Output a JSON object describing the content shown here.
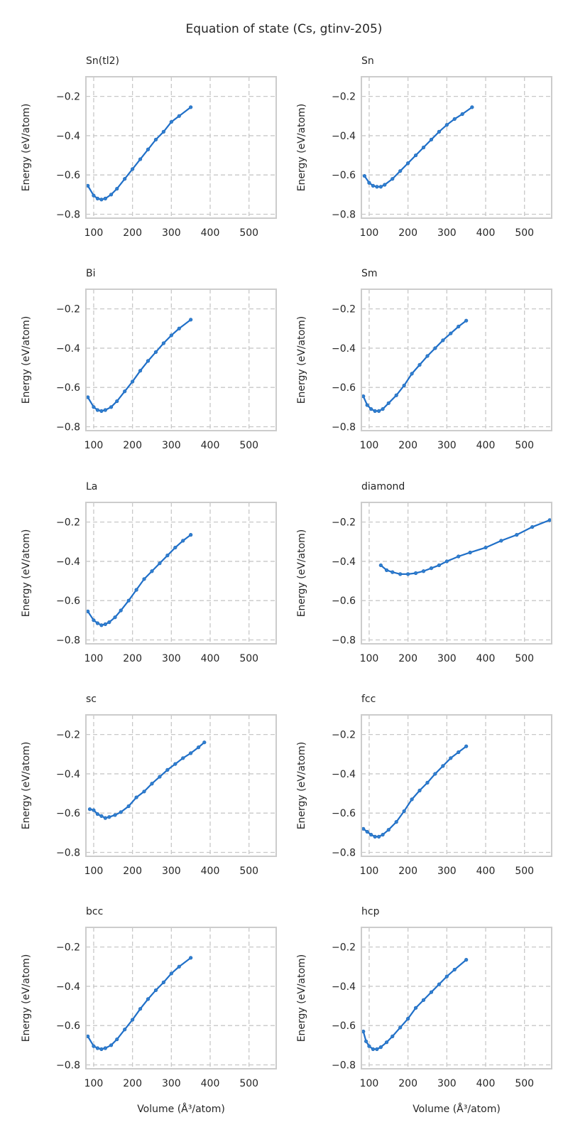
{
  "figure": {
    "title": "Equation of state (Cs, gtinv-205)"
  },
  "colors": {
    "series": "#2f7fd0",
    "grid": "#c8c8c8",
    "frame": "#cccccc",
    "text": "#262626"
  },
  "chart_data": [
    {
      "type": "scatter",
      "title": "Sn(tl2)",
      "xlabel": "",
      "ylabel": "Energy (eV/atom)",
      "xlim": [
        80,
        570
      ],
      "ylim": [
        -0.82,
        -0.1
      ],
      "xticks": [
        100,
        200,
        300,
        400,
        500
      ],
      "yticks": [
        -0.8,
        -0.6,
        -0.4,
        -0.2
      ],
      "grid": true,
      "x": [
        85,
        100,
        110,
        120,
        130,
        145,
        160,
        180,
        200,
        220,
        240,
        260,
        280,
        300,
        320,
        350
      ],
      "y": [
        -0.655,
        -0.705,
        -0.72,
        -0.725,
        -0.72,
        -0.7,
        -0.67,
        -0.62,
        -0.57,
        -0.52,
        -0.47,
        -0.42,
        -0.38,
        -0.33,
        -0.3,
        -0.255
      ]
    },
    {
      "type": "scatter",
      "title": "Sn",
      "xlabel": "",
      "ylabel": "Energy (eV/atom)",
      "xlim": [
        80,
        570
      ],
      "ylim": [
        -0.82,
        -0.1
      ],
      "xticks": [
        100,
        200,
        300,
        400,
        500
      ],
      "yticks": [
        -0.8,
        -0.6,
        -0.4,
        -0.2
      ],
      "grid": true,
      "x": [
        88,
        100,
        110,
        120,
        130,
        140,
        160,
        180,
        200,
        220,
        240,
        260,
        280,
        300,
        320,
        340,
        365
      ],
      "y": [
        -0.605,
        -0.64,
        -0.655,
        -0.66,
        -0.66,
        -0.65,
        -0.62,
        -0.58,
        -0.54,
        -0.5,
        -0.46,
        -0.42,
        -0.38,
        -0.345,
        -0.315,
        -0.29,
        -0.255
      ]
    },
    {
      "type": "scatter",
      "title": "Bi",
      "xlabel": "",
      "ylabel": "Energy (eV/atom)",
      "xlim": [
        80,
        570
      ],
      "ylim": [
        -0.82,
        -0.1
      ],
      "xticks": [
        100,
        200,
        300,
        400,
        500
      ],
      "yticks": [
        -0.8,
        -0.6,
        -0.4,
        -0.2
      ],
      "grid": true,
      "x": [
        85,
        100,
        110,
        120,
        130,
        145,
        160,
        180,
        200,
        220,
        240,
        260,
        280,
        300,
        320,
        350
      ],
      "y": [
        -0.65,
        -0.7,
        -0.715,
        -0.72,
        -0.715,
        -0.7,
        -0.67,
        -0.62,
        -0.57,
        -0.515,
        -0.465,
        -0.42,
        -0.375,
        -0.335,
        -0.3,
        -0.255
      ]
    },
    {
      "type": "scatter",
      "title": "Sm",
      "xlabel": "",
      "ylabel": "Energy (eV/atom)",
      "xlim": [
        80,
        570
      ],
      "ylim": [
        -0.82,
        -0.1
      ],
      "xticks": [
        100,
        200,
        300,
        400,
        500
      ],
      "yticks": [
        -0.8,
        -0.6,
        -0.4,
        -0.2
      ],
      "grid": true,
      "x": [
        85,
        95,
        105,
        115,
        125,
        135,
        150,
        170,
        190,
        210,
        230,
        250,
        270,
        290,
        310,
        330,
        350
      ],
      "y": [
        -0.645,
        -0.69,
        -0.71,
        -0.72,
        -0.72,
        -0.71,
        -0.68,
        -0.64,
        -0.59,
        -0.53,
        -0.485,
        -0.44,
        -0.4,
        -0.36,
        -0.325,
        -0.29,
        -0.26
      ]
    },
    {
      "type": "scatter",
      "title": "La",
      "xlabel": "",
      "ylabel": "Energy (eV/atom)",
      "xlim": [
        80,
        570
      ],
      "ylim": [
        -0.82,
        -0.1
      ],
      "xticks": [
        100,
        200,
        300,
        400,
        500
      ],
      "yticks": [
        -0.8,
        -0.6,
        -0.4,
        -0.2
      ],
      "grid": true,
      "x": [
        85,
        100,
        110,
        120,
        130,
        140,
        155,
        170,
        190,
        210,
        230,
        250,
        270,
        290,
        310,
        330,
        350
      ],
      "y": [
        -0.655,
        -0.7,
        -0.715,
        -0.725,
        -0.72,
        -0.71,
        -0.685,
        -0.65,
        -0.6,
        -0.545,
        -0.49,
        -0.45,
        -0.41,
        -0.37,
        -0.33,
        -0.295,
        -0.265
      ]
    },
    {
      "type": "scatter",
      "title": "diamond",
      "xlabel": "",
      "ylabel": "Energy (eV/atom)",
      "xlim": [
        80,
        570
      ],
      "ylim": [
        -0.82,
        -0.1
      ],
      "xticks": [
        100,
        200,
        300,
        400,
        500
      ],
      "yticks": [
        -0.8,
        -0.6,
        -0.4,
        -0.2
      ],
      "grid": true,
      "x": [
        130,
        145,
        160,
        180,
        200,
        220,
        240,
        260,
        280,
        300,
        330,
        360,
        400,
        440,
        480,
        520,
        565
      ],
      "y": [
        -0.42,
        -0.445,
        -0.455,
        -0.465,
        -0.465,
        -0.46,
        -0.45,
        -0.435,
        -0.42,
        -0.4,
        -0.375,
        -0.355,
        -0.33,
        -0.295,
        -0.265,
        -0.225,
        -0.19
      ]
    },
    {
      "type": "scatter",
      "title": "sc",
      "xlabel": "",
      "ylabel": "Energy (eV/atom)",
      "xlim": [
        80,
        570
      ],
      "ylim": [
        -0.82,
        -0.1
      ],
      "xticks": [
        100,
        200,
        300,
        400,
        500
      ],
      "yticks": [
        -0.8,
        -0.6,
        -0.4,
        -0.2
      ],
      "grid": true,
      "x": [
        90,
        100,
        110,
        120,
        130,
        140,
        155,
        170,
        190,
        210,
        230,
        250,
        270,
        290,
        310,
        330,
        350,
        370,
        385
      ],
      "y": [
        -0.58,
        -0.585,
        -0.605,
        -0.615,
        -0.625,
        -0.62,
        -0.61,
        -0.595,
        -0.565,
        -0.52,
        -0.49,
        -0.45,
        -0.415,
        -0.38,
        -0.35,
        -0.32,
        -0.295,
        -0.265,
        -0.24
      ]
    },
    {
      "type": "scatter",
      "title": "fcc",
      "xlabel": "",
      "ylabel": "Energy (eV/atom)",
      "xlim": [
        80,
        570
      ],
      "ylim": [
        -0.82,
        -0.1
      ],
      "xticks": [
        100,
        200,
        300,
        400,
        500
      ],
      "yticks": [
        -0.8,
        -0.6,
        -0.4,
        -0.2
      ],
      "grid": true,
      "x": [
        85,
        95,
        105,
        115,
        125,
        135,
        150,
        170,
        190,
        210,
        230,
        250,
        270,
        290,
        310,
        330,
        350
      ],
      "y": [
        -0.68,
        -0.695,
        -0.71,
        -0.72,
        -0.72,
        -0.71,
        -0.685,
        -0.645,
        -0.59,
        -0.53,
        -0.485,
        -0.445,
        -0.4,
        -0.36,
        -0.32,
        -0.29,
        -0.26
      ]
    },
    {
      "type": "scatter",
      "title": "bcc",
      "xlabel": "Volume (Å³/atom)",
      "ylabel": "Energy (eV/atom)",
      "xlim": [
        80,
        570
      ],
      "ylim": [
        -0.82,
        -0.1
      ],
      "xticks": [
        100,
        200,
        300,
        400,
        500
      ],
      "yticks": [
        -0.8,
        -0.6,
        -0.4,
        -0.2
      ],
      "grid": true,
      "x": [
        85,
        100,
        110,
        120,
        130,
        145,
        160,
        180,
        200,
        220,
        240,
        260,
        280,
        300,
        320,
        350
      ],
      "y": [
        -0.655,
        -0.705,
        -0.715,
        -0.72,
        -0.715,
        -0.7,
        -0.67,
        -0.62,
        -0.57,
        -0.515,
        -0.465,
        -0.42,
        -0.38,
        -0.335,
        -0.3,
        -0.255
      ]
    },
    {
      "type": "scatter",
      "title": "hcp",
      "xlabel": "Volume (Å³/atom)",
      "ylabel": "Energy (eV/atom)",
      "xlim": [
        80,
        570
      ],
      "ylim": [
        -0.82,
        -0.1
      ],
      "xticks": [
        100,
        200,
        300,
        400,
        500
      ],
      "yticks": [
        -0.8,
        -0.6,
        -0.4,
        -0.2
      ],
      "grid": true,
      "x": [
        85,
        92,
        100,
        110,
        120,
        130,
        145,
        160,
        180,
        200,
        220,
        240,
        260,
        280,
        300,
        320,
        350
      ],
      "y": [
        -0.63,
        -0.68,
        -0.705,
        -0.72,
        -0.72,
        -0.71,
        -0.685,
        -0.655,
        -0.61,
        -0.565,
        -0.51,
        -0.47,
        -0.43,
        -0.39,
        -0.35,
        -0.315,
        -0.265
      ]
    }
  ]
}
